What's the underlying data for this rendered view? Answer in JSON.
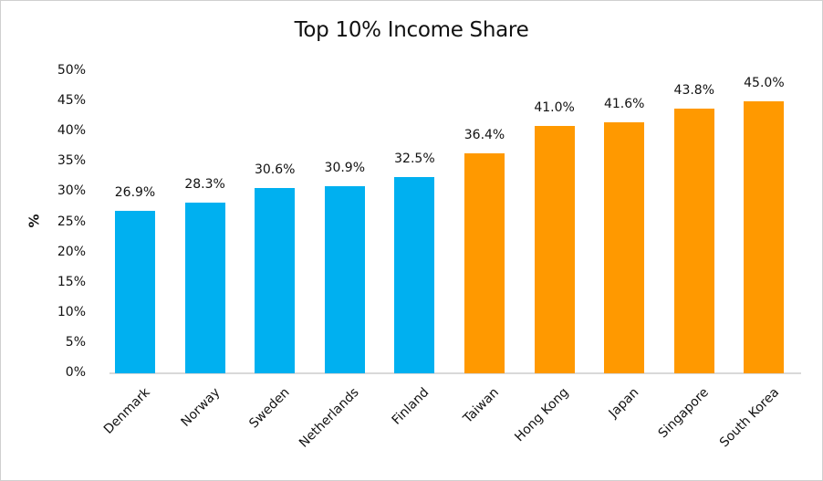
{
  "chart_data": {
    "type": "bar",
    "title": "Top 10% Income Share",
    "xlabel": "",
    "ylabel": "%",
    "ylim": [
      0,
      50
    ],
    "yticks": [
      "0%",
      "5%",
      "10%",
      "15%",
      "20%",
      "25%",
      "30%",
      "35%",
      "40%",
      "45%",
      "50%"
    ],
    "grid": false,
    "legend": null,
    "categories": [
      "Denmark",
      "Norway",
      "Sweden",
      "Netherlands",
      "Finland",
      "Taiwan",
      "Hong Kong",
      "Japan",
      "Singapore",
      "South Korea"
    ],
    "values": [
      26.9,
      28.3,
      30.6,
      30.9,
      32.5,
      36.4,
      41.0,
      41.6,
      43.8,
      45.0
    ],
    "data_labels": [
      "26.9%",
      "28.3%",
      "30.6%",
      "30.9%",
      "32.5%",
      "36.4%",
      "41.0%",
      "41.6%",
      "43.8%",
      "45.0%"
    ],
    "bar_colors": [
      "#00b0f0",
      "#00b0f0",
      "#00b0f0",
      "#00b0f0",
      "#00b0f0",
      "#ff9900",
      "#ff9900",
      "#ff9900",
      "#ff9900",
      "#ff9900"
    ],
    "groups": [
      {
        "color": "#00b0f0",
        "members": [
          "Denmark",
          "Norway",
          "Sweden",
          "Netherlands",
          "Finland"
        ]
      },
      {
        "color": "#ff9900",
        "members": [
          "Taiwan",
          "Hong Kong",
          "Japan",
          "Singapore",
          "South Korea"
        ]
      }
    ]
  }
}
